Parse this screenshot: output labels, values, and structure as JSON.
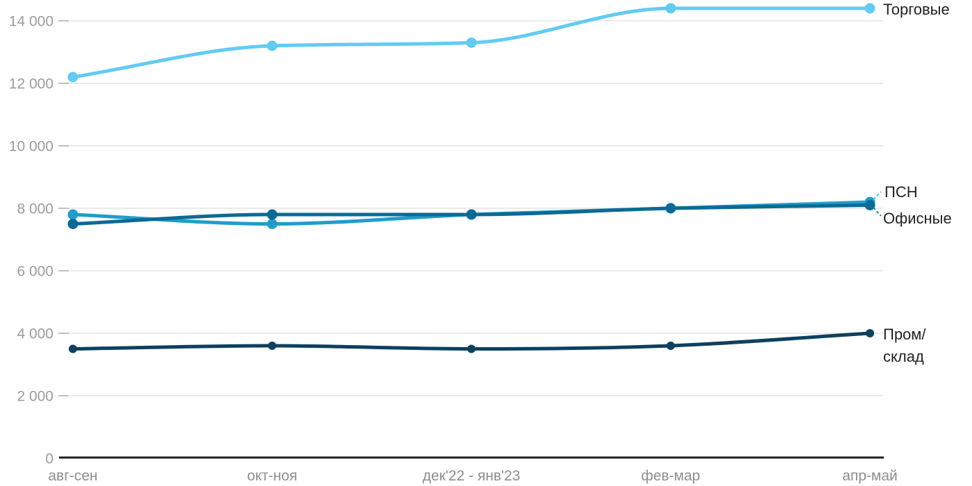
{
  "chart_data": {
    "type": "line",
    "title": "",
    "categories": [
      "авг-сен",
      "окт-ноя",
      "дек'22 - янв'23",
      "фев-мар",
      "апр-май"
    ],
    "y_ticks": [
      {
        "value": 0,
        "label": "0"
      },
      {
        "value": 2000,
        "label": "2 000"
      },
      {
        "value": 4000,
        "label": "4 000"
      },
      {
        "value": 6000,
        "label": "6 000"
      },
      {
        "value": 8000,
        "label": "8 000"
      },
      {
        "value": 10000,
        "label": "10 000"
      },
      {
        "value": 12000,
        "label": "12 000"
      },
      {
        "value": 14000,
        "label": "14 000"
      }
    ],
    "ylim": [
      0,
      14600
    ],
    "grid": "on",
    "legend_position": "right-end-labels",
    "series": [
      {
        "name": "Торговые",
        "label": "Торговые",
        "color": "#63CBF2",
        "point_radius": 7.5,
        "values": [
          12200,
          13200,
          13300,
          14400,
          14400
        ]
      },
      {
        "name": "ПСН",
        "label": "ПСН",
        "color": "#219DCA",
        "point_radius": 7.5,
        "values": [
          7800,
          7500,
          7800,
          8000,
          8200
        ]
      },
      {
        "name": "Офисные",
        "label": "Офисные",
        "color": "#0D6A94",
        "point_radius": 7.5,
        "values": [
          7500,
          7800,
          7800,
          8000,
          8100
        ]
      },
      {
        "name": "Пром/склад",
        "label": "Пром/\nсклад",
        "color": "#0E405F",
        "point_radius": 6,
        "values": [
          3500,
          3600,
          3500,
          3600,
          4000
        ]
      }
    ],
    "leaders": [
      {
        "for": "ПСН",
        "color": "#4ABCE6"
      },
      {
        "for": "Офисные",
        "color": "#1581AD"
      }
    ],
    "colors": {
      "background": "#FFFFFF",
      "grid": "#EAEAEA",
      "tick": "#BFBFBF",
      "axis": "#1F1F1F",
      "y_label": "#9C9C9C",
      "x_label": "#8D8D8D",
      "series_label": "#222222"
    }
  }
}
